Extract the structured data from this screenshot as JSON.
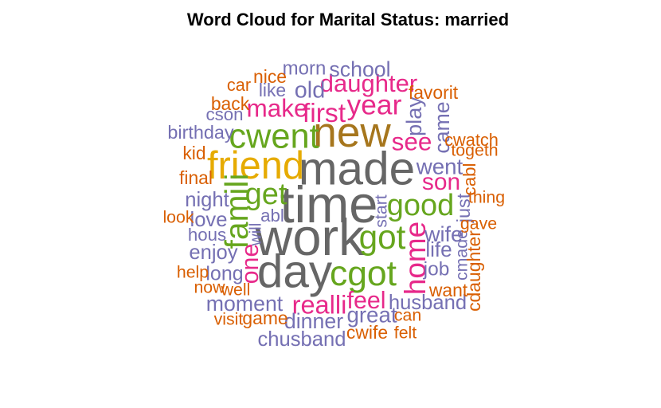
{
  "chart_data": {
    "type": "wordcloud",
    "title": "Word Cloud for Marital Status: married",
    "colors": {
      "gray": "#666666",
      "olive": "#A6761D",
      "gold": "#E6AB02",
      "green": "#66A61E",
      "pink": "#E7298A",
      "purple": "#7570B3",
      "orange": "#D95F02"
    },
    "words": [
      {
        "text": "time",
        "weight": 100,
        "color": "gray",
        "rotate": false
      },
      {
        "text": "work",
        "weight": 100,
        "color": "gray",
        "rotate": false
      },
      {
        "text": "made",
        "weight": 88,
        "color": "gray",
        "rotate": false
      },
      {
        "text": "day",
        "weight": 88,
        "color": "gray",
        "rotate": false
      },
      {
        "text": "new",
        "weight": 78,
        "color": "olive",
        "rotate": false
      },
      {
        "text": "friend",
        "weight": 70,
        "color": "gold",
        "rotate": false
      },
      {
        "text": "cwent",
        "weight": 60,
        "color": "green",
        "rotate": false
      },
      {
        "text": "cgot",
        "weight": 62,
        "color": "green",
        "rotate": false
      },
      {
        "text": "got",
        "weight": 58,
        "color": "green",
        "rotate": false
      },
      {
        "text": "famili",
        "weight": 55,
        "color": "green",
        "rotate": true
      },
      {
        "text": "get",
        "weight": 50,
        "color": "green",
        "rotate": false
      },
      {
        "text": "good",
        "weight": 50,
        "color": "green",
        "rotate": false
      },
      {
        "text": "home",
        "weight": 48,
        "color": "pink",
        "rotate": true
      },
      {
        "text": "year",
        "weight": 45,
        "color": "pink",
        "rotate": false
      },
      {
        "text": "first",
        "weight": 42,
        "color": "pink",
        "rotate": false
      },
      {
        "text": "realli",
        "weight": 40,
        "color": "pink",
        "rotate": false
      },
      {
        "text": "see",
        "weight": 38,
        "color": "pink",
        "rotate": false
      },
      {
        "text": "make",
        "weight": 38,
        "color": "pink",
        "rotate": false
      },
      {
        "text": "daughter",
        "weight": 37,
        "color": "pink",
        "rotate": false
      },
      {
        "text": "feel",
        "weight": 36,
        "color": "pink",
        "rotate": false
      },
      {
        "text": "one",
        "weight": 36,
        "color": "pink",
        "rotate": true
      },
      {
        "text": "son",
        "weight": 35,
        "color": "pink",
        "rotate": false
      },
      {
        "text": "old",
        "weight": 33,
        "color": "purple",
        "rotate": false
      },
      {
        "text": "went",
        "weight": 31,
        "color": "purple",
        "rotate": false
      },
      {
        "text": "great",
        "weight": 31,
        "color": "purple",
        "rotate": false
      },
      {
        "text": "wife",
        "weight": 30,
        "color": "purple",
        "rotate": false
      },
      {
        "text": "play",
        "weight": 30,
        "color": "purple",
        "rotate": true
      },
      {
        "text": "came",
        "weight": 29,
        "color": "purple",
        "rotate": true
      },
      {
        "text": "school",
        "weight": 29,
        "color": "purple",
        "rotate": false
      },
      {
        "text": "moment",
        "weight": 29,
        "color": "purple",
        "rotate": false
      },
      {
        "text": "dinner",
        "weight": 29,
        "color": "purple",
        "rotate": false
      },
      {
        "text": "life",
        "weight": 28,
        "color": "purple",
        "rotate": false
      },
      {
        "text": "husband",
        "weight": 27,
        "color": "purple",
        "rotate": false
      },
      {
        "text": "chusband",
        "weight": 27,
        "color": "purple",
        "rotate": false
      },
      {
        "text": "night",
        "weight": 27,
        "color": "purple",
        "rotate": false
      },
      {
        "text": "love",
        "weight": 27,
        "color": "purple",
        "rotate": false
      },
      {
        "text": "enjoy",
        "weight": 27,
        "color": "purple",
        "rotate": false
      },
      {
        "text": "long",
        "weight": 26,
        "color": "purple",
        "rotate": false
      },
      {
        "text": "job",
        "weight": 25,
        "color": "purple",
        "rotate": false
      },
      {
        "text": "morn",
        "weight": 24,
        "color": "purple",
        "rotate": false
      },
      {
        "text": "birthday",
        "weight": 23,
        "color": "purple",
        "rotate": false
      },
      {
        "text": "just",
        "weight": 23,
        "color": "purple",
        "rotate": true
      },
      {
        "text": "like",
        "weight": 22,
        "color": "purple",
        "rotate": false
      },
      {
        "text": "hous",
        "weight": 21,
        "color": "purple",
        "rotate": false
      },
      {
        "text": "abl",
        "weight": 21,
        "color": "purple",
        "rotate": false
      },
      {
        "text": "cson",
        "weight": 21,
        "color": "purple",
        "rotate": false
      },
      {
        "text": "start",
        "weight": 19,
        "color": "purple",
        "rotate": true
      },
      {
        "text": "cmade",
        "weight": 19,
        "color": "purple",
        "rotate": true
      },
      {
        "text": "will",
        "weight": 18,
        "color": "purple",
        "rotate": true
      },
      {
        "text": "cdaughter",
        "weight": 22,
        "color": "orange",
        "rotate": true
      },
      {
        "text": "back",
        "weight": 22,
        "color": "orange",
        "rotate": false
      },
      {
        "text": "nice",
        "weight": 22,
        "color": "orange",
        "rotate": false
      },
      {
        "text": "favorit",
        "weight": 22,
        "color": "orange",
        "rotate": false
      },
      {
        "text": "final",
        "weight": 22,
        "color": "orange",
        "rotate": false
      },
      {
        "text": "kid",
        "weight": 22,
        "color": "orange",
        "rotate": false
      },
      {
        "text": "cabl",
        "weight": 21,
        "color": "orange",
        "rotate": true
      },
      {
        "text": "game",
        "weight": 22,
        "color": "orange",
        "rotate": false
      },
      {
        "text": "want",
        "weight": 22,
        "color": "orange",
        "rotate": false
      },
      {
        "text": "cwife",
        "weight": 22,
        "color": "orange",
        "rotate": false
      },
      {
        "text": "car",
        "weight": 20,
        "color": "orange",
        "rotate": false
      },
      {
        "text": "cwatch",
        "weight": 20,
        "color": "orange",
        "rotate": false
      },
      {
        "text": "togeth",
        "weight": 19,
        "color": "orange",
        "rotate": false
      },
      {
        "text": "thing",
        "weight": 19,
        "color": "orange",
        "rotate": false
      },
      {
        "text": "gave",
        "weight": 19,
        "color": "orange",
        "rotate": false
      },
      {
        "text": "look",
        "weight": 19,
        "color": "orange",
        "rotate": false
      },
      {
        "text": "help",
        "weight": 19,
        "color": "orange",
        "rotate": false
      },
      {
        "text": "now",
        "weight": 19,
        "color": "orange",
        "rotate": false
      },
      {
        "text": "well",
        "weight": 19,
        "color": "orange",
        "rotate": false
      },
      {
        "text": "visit",
        "weight": 19,
        "color": "orange",
        "rotate": false
      },
      {
        "text": "can",
        "weight": 19,
        "color": "orange",
        "rotate": false
      },
      {
        "text": "felt",
        "weight": 19,
        "color": "orange",
        "rotate": false
      }
    ]
  }
}
